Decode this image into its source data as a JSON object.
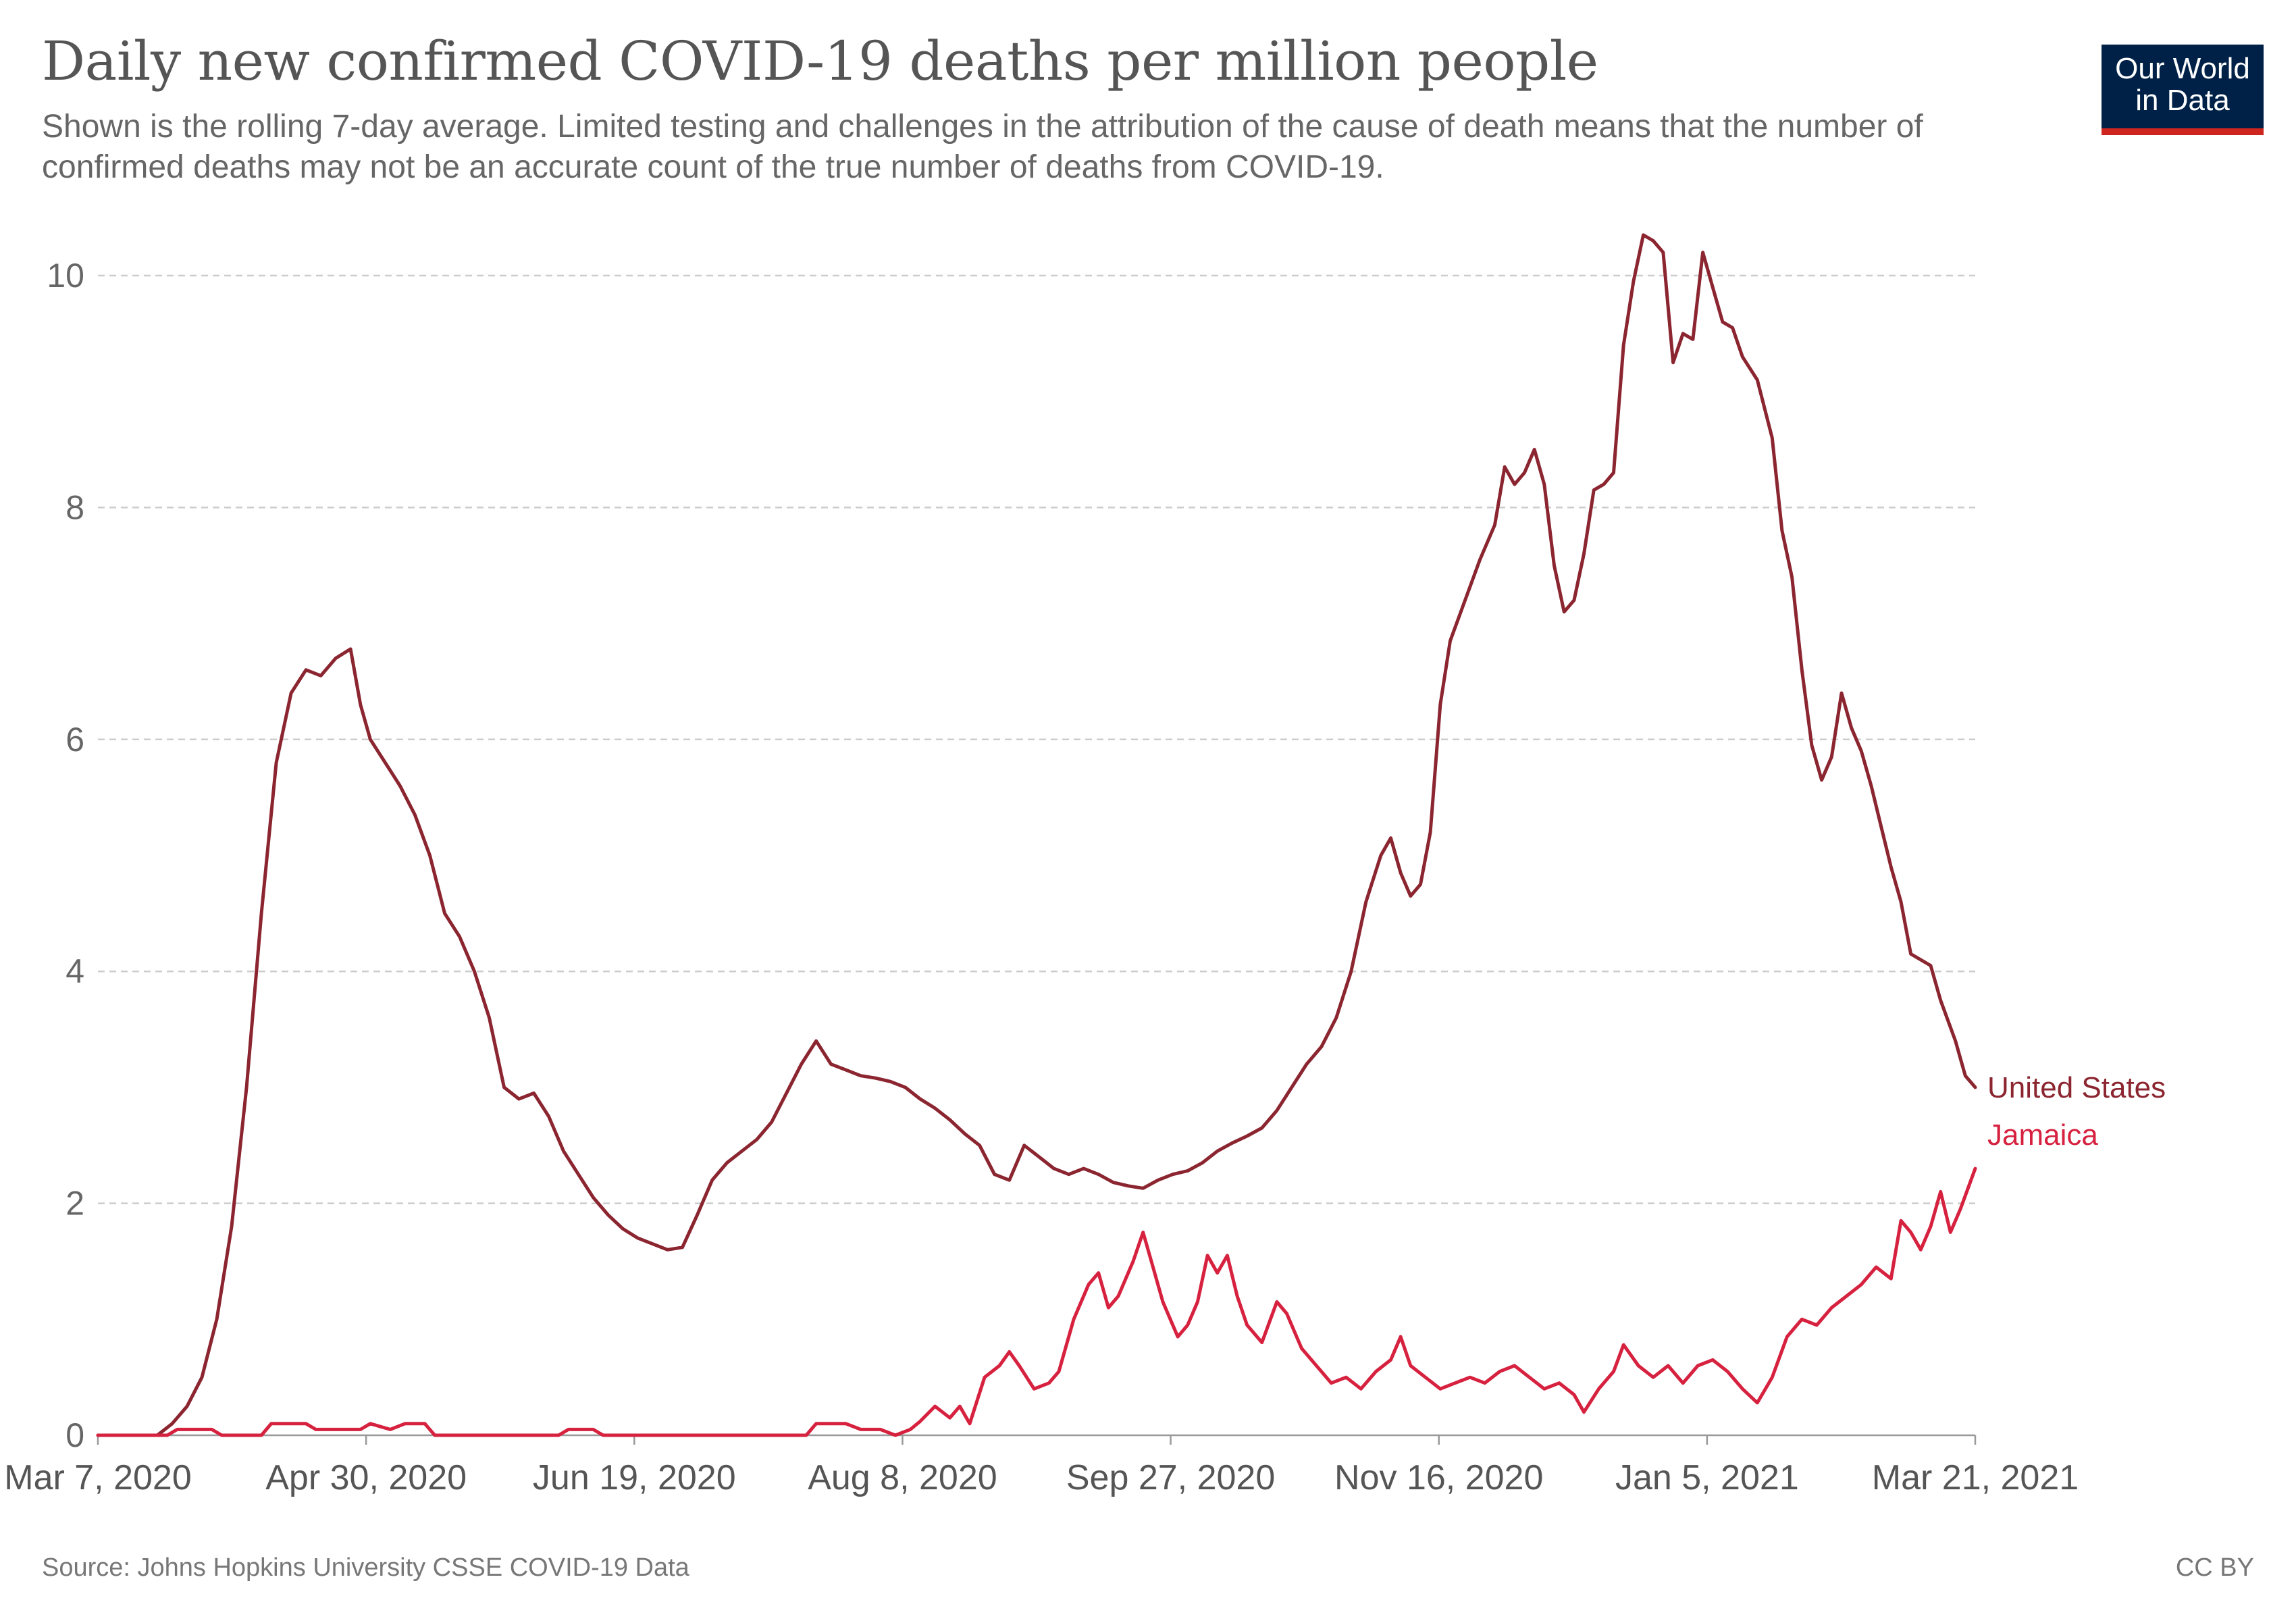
{
  "title": "Daily new confirmed COVID-19 deaths per million people",
  "subtitle": "Shown is the rolling 7-day average. Limited testing and challenges in the attribution of the cause of death means that the number of confirmed deaths may not be an accurate count of the true number of deaths from COVID-19.",
  "logo": {
    "line1": "Our World",
    "line2": "in Data"
  },
  "footer": {
    "source": "Source: Johns Hopkins University CSSE COVID-19 Data",
    "license": "CC BY"
  },
  "colors": {
    "united_states": "#8b2530",
    "jamaica": "#d6213f",
    "grid": "#cccccc",
    "logo_bg": "#002147",
    "logo_bar": "#ce261e"
  },
  "chart_data": {
    "type": "line",
    "title": "Daily new confirmed COVID-19 deaths per million people",
    "x_ticks": [
      "Mar 7, 2020",
      "Apr 30, 2020",
      "Jun 19, 2020",
      "Aug 8, 2020",
      "Sep 27, 2020",
      "Nov 16, 2020",
      "Jan 5, 2021",
      "Mar 21, 2021"
    ],
    "x_range": [
      "2020-03-07",
      "2021-03-21"
    ],
    "ylim": [
      0,
      10
    ],
    "y_ticks": [
      0,
      2,
      4,
      6,
      8,
      10
    ],
    "grid": true,
    "legend": "labels at line ends (right)",
    "series": [
      {
        "name": "United States",
        "color": "#8b2530",
        "points": [
          [
            "2020-03-07",
            0
          ],
          [
            "2020-03-19",
            0.0
          ],
          [
            "2020-03-22",
            0.1
          ],
          [
            "2020-03-25",
            0.25
          ],
          [
            "2020-03-28",
            0.5
          ],
          [
            "2020-03-31",
            1.0
          ],
          [
            "2020-04-03",
            1.8
          ],
          [
            "2020-04-06",
            3.0
          ],
          [
            "2020-04-09",
            4.5
          ],
          [
            "2020-04-12",
            5.8
          ],
          [
            "2020-04-15",
            6.4
          ],
          [
            "2020-04-18",
            6.6
          ],
          [
            "2020-04-21",
            6.55
          ],
          [
            "2020-04-24",
            6.7
          ],
          [
            "2020-04-27",
            6.78
          ],
          [
            "2020-04-29",
            6.3
          ],
          [
            "2020-05-01",
            6.0
          ],
          [
            "2020-05-04",
            5.8
          ],
          [
            "2020-05-07",
            5.6
          ],
          [
            "2020-05-10",
            5.35
          ],
          [
            "2020-05-13",
            5.0
          ],
          [
            "2020-05-16",
            4.5
          ],
          [
            "2020-05-19",
            4.3
          ],
          [
            "2020-05-22",
            4.0
          ],
          [
            "2020-05-25",
            3.6
          ],
          [
            "2020-05-28",
            3.0
          ],
          [
            "2020-05-31",
            2.9
          ],
          [
            "2020-06-03",
            2.95
          ],
          [
            "2020-06-06",
            2.75
          ],
          [
            "2020-06-09",
            2.45
          ],
          [
            "2020-06-12",
            2.25
          ],
          [
            "2020-06-15",
            2.05
          ],
          [
            "2020-06-18",
            1.9
          ],
          [
            "2020-06-21",
            1.78
          ],
          [
            "2020-06-24",
            1.7
          ],
          [
            "2020-06-27",
            1.65
          ],
          [
            "2020-06-30",
            1.6
          ],
          [
            "2020-07-03",
            1.62
          ],
          [
            "2020-07-06",
            1.9
          ],
          [
            "2020-07-09",
            2.2
          ],
          [
            "2020-07-12",
            2.35
          ],
          [
            "2020-07-15",
            2.45
          ],
          [
            "2020-07-18",
            2.55
          ],
          [
            "2020-07-21",
            2.7
          ],
          [
            "2020-07-24",
            2.95
          ],
          [
            "2020-07-27",
            3.2
          ],
          [
            "2020-07-30",
            3.4
          ],
          [
            "2020-08-02",
            3.2
          ],
          [
            "2020-08-05",
            3.15
          ],
          [
            "2020-08-08",
            3.1
          ],
          [
            "2020-08-11",
            3.08
          ],
          [
            "2020-08-14",
            3.05
          ],
          [
            "2020-08-17",
            3.0
          ],
          [
            "2020-08-20",
            2.9
          ],
          [
            "2020-08-23",
            2.82
          ],
          [
            "2020-08-26",
            2.72
          ],
          [
            "2020-08-29",
            2.6
          ],
          [
            "2020-09-01",
            2.5
          ],
          [
            "2020-09-04",
            2.25
          ],
          [
            "2020-09-07",
            2.2
          ],
          [
            "2020-09-10",
            2.5
          ],
          [
            "2020-09-13",
            2.4
          ],
          [
            "2020-09-16",
            2.3
          ],
          [
            "2020-09-19",
            2.25
          ],
          [
            "2020-09-22",
            2.3
          ],
          [
            "2020-09-25",
            2.25
          ],
          [
            "2020-09-28",
            2.18
          ],
          [
            "2020-10-01",
            2.15
          ],
          [
            "2020-10-04",
            2.13
          ],
          [
            "2020-10-07",
            2.2
          ],
          [
            "2020-10-10",
            2.25
          ],
          [
            "2020-10-13",
            2.28
          ],
          [
            "2020-10-16",
            2.35
          ],
          [
            "2020-10-19",
            2.45
          ],
          [
            "2020-10-22",
            2.52
          ],
          [
            "2020-10-25",
            2.58
          ],
          [
            "2020-10-28",
            2.65
          ],
          [
            "2020-10-31",
            2.8
          ],
          [
            "2020-11-03",
            3.0
          ],
          [
            "2020-11-06",
            3.2
          ],
          [
            "2020-11-09",
            3.35
          ],
          [
            "2020-11-12",
            3.6
          ],
          [
            "2020-11-15",
            4.0
          ],
          [
            "2020-11-18",
            4.6
          ],
          [
            "2020-11-21",
            5.0
          ],
          [
            "2020-11-23",
            5.15
          ],
          [
            "2020-11-25",
            4.85
          ],
          [
            "2020-11-27",
            4.65
          ],
          [
            "2020-11-29",
            4.75
          ],
          [
            "2020-12-01",
            5.2
          ],
          [
            "2020-12-03",
            6.3
          ],
          [
            "2020-12-05",
            6.85
          ],
          [
            "2020-12-08",
            7.2
          ],
          [
            "2020-12-11",
            7.55
          ],
          [
            "2020-12-14",
            7.85
          ],
          [
            "2020-12-16",
            8.35
          ],
          [
            "2020-12-18",
            8.2
          ],
          [
            "2020-12-20",
            8.3
          ],
          [
            "2020-12-22",
            8.5
          ],
          [
            "2020-12-24",
            8.2
          ],
          [
            "2020-12-26",
            7.5
          ],
          [
            "2020-12-28",
            7.1
          ],
          [
            "2020-12-30",
            7.2
          ],
          [
            "2021-01-01",
            7.6
          ],
          [
            "2021-01-03",
            8.15
          ],
          [
            "2021-01-05",
            8.2
          ],
          [
            "2021-01-07",
            8.3
          ],
          [
            "2021-01-09",
            9.4
          ],
          [
            "2021-01-11",
            9.95
          ],
          [
            "2021-01-13",
            10.35
          ],
          [
            "2021-01-15",
            10.3
          ],
          [
            "2021-01-17",
            10.2
          ],
          [
            "2021-01-19",
            9.25
          ],
          [
            "2021-01-21",
            9.5
          ],
          [
            "2021-01-23",
            9.45
          ],
          [
            "2021-01-25",
            10.2
          ],
          [
            "2021-01-27",
            9.9
          ],
          [
            "2021-01-29",
            9.6
          ],
          [
            "2021-01-31",
            9.55
          ],
          [
            "2021-02-02",
            9.3
          ],
          [
            "2021-02-05",
            9.1
          ],
          [
            "2021-02-08",
            8.6
          ],
          [
            "2021-02-10",
            7.8
          ],
          [
            "2021-02-12",
            7.4
          ],
          [
            "2021-02-14",
            6.6
          ],
          [
            "2021-02-16",
            5.95
          ],
          [
            "2021-02-18",
            5.65
          ],
          [
            "2021-02-20",
            5.85
          ],
          [
            "2021-02-22",
            6.4
          ],
          [
            "2021-02-24",
            6.1
          ],
          [
            "2021-02-26",
            5.9
          ],
          [
            "2021-02-28",
            5.6
          ],
          [
            "2021-03-02",
            5.25
          ],
          [
            "2021-03-04",
            4.9
          ],
          [
            "2021-03-06",
            4.6
          ],
          [
            "2021-03-08",
            4.15
          ],
          [
            "2021-03-10",
            4.1
          ],
          [
            "2021-03-12",
            4.05
          ],
          [
            "2021-03-14",
            3.75
          ],
          [
            "2021-03-17",
            3.4
          ],
          [
            "2021-03-19",
            3.1
          ],
          [
            "2021-03-21",
            3.0
          ]
        ]
      },
      {
        "name": "Jamaica",
        "color": "#d6213f",
        "points": [
          [
            "2020-03-07",
            0
          ],
          [
            "2020-03-21",
            0
          ],
          [
            "2020-03-23",
            0.05
          ],
          [
            "2020-03-30",
            0.05
          ],
          [
            "2020-04-01",
            0
          ],
          [
            "2020-04-09",
            0
          ],
          [
            "2020-04-11",
            0.1
          ],
          [
            "2020-04-18",
            0.1
          ],
          [
            "2020-04-20",
            0.05
          ],
          [
            "2020-04-29",
            0.05
          ],
          [
            "2020-05-01",
            0.1
          ],
          [
            "2020-05-05",
            0.05
          ],
          [
            "2020-05-08",
            0.1
          ],
          [
            "2020-05-12",
            0.1
          ],
          [
            "2020-05-14",
            0
          ],
          [
            "2020-06-08",
            0
          ],
          [
            "2020-06-10",
            0.05
          ],
          [
            "2020-06-15",
            0.05
          ],
          [
            "2020-06-17",
            0
          ],
          [
            "2020-07-28",
            0
          ],
          [
            "2020-07-30",
            0.1
          ],
          [
            "2020-08-05",
            0.1
          ],
          [
            "2020-08-08",
            0.05
          ],
          [
            "2020-08-12",
            0.05
          ],
          [
            "2020-08-15",
            0
          ],
          [
            "2020-08-18",
            0.05
          ],
          [
            "2020-08-20",
            0.12
          ],
          [
            "2020-08-23",
            0.25
          ],
          [
            "2020-08-26",
            0.15
          ],
          [
            "2020-08-28",
            0.25
          ],
          [
            "2020-08-30",
            0.1
          ],
          [
            "2020-09-02",
            0.5
          ],
          [
            "2020-09-05",
            0.6
          ],
          [
            "2020-09-07",
            0.72
          ],
          [
            "2020-09-09",
            0.6
          ],
          [
            "2020-09-12",
            0.4
          ],
          [
            "2020-09-15",
            0.45
          ],
          [
            "2020-09-17",
            0.55
          ],
          [
            "2020-09-20",
            1.0
          ],
          [
            "2020-09-23",
            1.3
          ],
          [
            "2020-09-25",
            1.4
          ],
          [
            "2020-09-27",
            1.1
          ],
          [
            "2020-09-29",
            1.2
          ],
          [
            "2020-10-02",
            1.5
          ],
          [
            "2020-10-04",
            1.75
          ],
          [
            "2020-10-06",
            1.45
          ],
          [
            "2020-10-08",
            1.15
          ],
          [
            "2020-10-11",
            0.85
          ],
          [
            "2020-10-13",
            0.95
          ],
          [
            "2020-10-15",
            1.15
          ],
          [
            "2020-10-17",
            1.55
          ],
          [
            "2020-10-19",
            1.4
          ],
          [
            "2020-10-21",
            1.55
          ],
          [
            "2020-10-23",
            1.2
          ],
          [
            "2020-10-25",
            0.95
          ],
          [
            "2020-10-28",
            0.8
          ],
          [
            "2020-10-31",
            1.15
          ],
          [
            "2020-11-02",
            1.05
          ],
          [
            "2020-11-05",
            0.75
          ],
          [
            "2020-11-08",
            0.6
          ],
          [
            "2020-11-11",
            0.45
          ],
          [
            "2020-11-14",
            0.5
          ],
          [
            "2020-11-17",
            0.4
          ],
          [
            "2020-11-20",
            0.55
          ],
          [
            "2020-11-23",
            0.65
          ],
          [
            "2020-11-25",
            0.85
          ],
          [
            "2020-11-27",
            0.6
          ],
          [
            "2020-11-30",
            0.5
          ],
          [
            "2020-12-03",
            0.4
          ],
          [
            "2020-12-06",
            0.45
          ],
          [
            "2020-12-09",
            0.5
          ],
          [
            "2020-12-12",
            0.45
          ],
          [
            "2020-12-15",
            0.55
          ],
          [
            "2020-12-18",
            0.6
          ],
          [
            "2020-12-21",
            0.5
          ],
          [
            "2020-12-24",
            0.4
          ],
          [
            "2020-12-27",
            0.45
          ],
          [
            "2020-12-30",
            0.35
          ],
          [
            "2021-01-01",
            0.2
          ],
          [
            "2021-01-04",
            0.4
          ],
          [
            "2021-01-07",
            0.55
          ],
          [
            "2021-01-09",
            0.78
          ],
          [
            "2021-01-12",
            0.6
          ],
          [
            "2021-01-15",
            0.5
          ],
          [
            "2021-01-18",
            0.6
          ],
          [
            "2021-01-21",
            0.45
          ],
          [
            "2021-01-24",
            0.6
          ],
          [
            "2021-01-27",
            0.65
          ],
          [
            "2021-01-30",
            0.55
          ],
          [
            "2021-02-02",
            0.4
          ],
          [
            "2021-02-05",
            0.28
          ],
          [
            "2021-02-08",
            0.5
          ],
          [
            "2021-02-11",
            0.85
          ],
          [
            "2021-02-14",
            1.0
          ],
          [
            "2021-02-17",
            0.95
          ],
          [
            "2021-02-20",
            1.1
          ],
          [
            "2021-02-23",
            1.2
          ],
          [
            "2021-02-26",
            1.3
          ],
          [
            "2021-03-01",
            1.45
          ],
          [
            "2021-03-04",
            1.35
          ],
          [
            "2021-03-06",
            1.85
          ],
          [
            "2021-03-08",
            1.75
          ],
          [
            "2021-03-10",
            1.6
          ],
          [
            "2021-03-12",
            1.8
          ],
          [
            "2021-03-14",
            2.1
          ],
          [
            "2021-03-16",
            1.75
          ],
          [
            "2021-03-18",
            1.95
          ],
          [
            "2021-03-21",
            2.3
          ]
        ]
      }
    ]
  }
}
